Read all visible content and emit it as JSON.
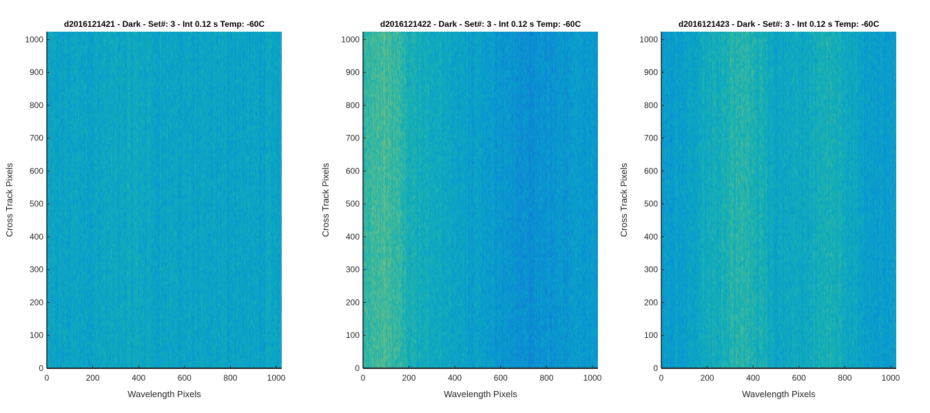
{
  "chart_data": [
    {
      "type": "heatmap",
      "title": "d2016121421 - Dark - Set#: 3 - Int 0.12 s Temp: -60C",
      "xlabel": "Wavelength Pixels",
      "ylabel": "Cross Track Pixels",
      "xlim": [
        0,
        1024
      ],
      "ylim": [
        0,
        1024
      ],
      "x_ticks": [
        0,
        200,
        400,
        600,
        800,
        1000
      ],
      "y_ticks": [
        0,
        100,
        200,
        300,
        400,
        500,
        600,
        700,
        800,
        900,
        1000
      ],
      "x_tick_labels": [
        "0",
        "200",
        "400",
        "600",
        "800",
        "1000"
      ],
      "y_tick_labels": [
        "0",
        "100",
        "200",
        "300",
        "400",
        "500",
        "600",
        "700",
        "800",
        "900",
        "1000"
      ],
      "colormap": "parula",
      "grid": false,
      "column_mean_profile": {
        "x": [
          0,
          100,
          200,
          300,
          400,
          500,
          600,
          700,
          800,
          900,
          1024
        ],
        "level": [
          0.46,
          0.47,
          0.47,
          0.48,
          0.49,
          0.47,
          0.47,
          0.46,
          0.47,
          0.46,
          0.47
        ]
      }
    },
    {
      "type": "heatmap",
      "title": "d2016121422 - Dark - Set#: 3 - Int 0.12 s Temp: -60C",
      "xlabel": "Wavelength Pixels",
      "ylabel": "Cross Track Pixels",
      "xlim": [
        0,
        1024
      ],
      "ylim": [
        0,
        1024
      ],
      "x_ticks": [
        0,
        200,
        400,
        600,
        800,
        1000
      ],
      "y_ticks": [
        0,
        100,
        200,
        300,
        400,
        500,
        600,
        700,
        800,
        900,
        1000
      ],
      "x_tick_labels": [
        "0",
        "200",
        "400",
        "600",
        "800",
        "1000"
      ],
      "y_tick_labels": [
        "0",
        "100",
        "200",
        "300",
        "400",
        "500",
        "600",
        "700",
        "800",
        "900",
        "1000"
      ],
      "colormap": "parula",
      "grid": false,
      "column_mean_profile": {
        "x": [
          0,
          50,
          100,
          150,
          200,
          300,
          400,
          500,
          600,
          700,
          800,
          900,
          1024
        ],
        "level": [
          0.58,
          0.62,
          0.63,
          0.6,
          0.55,
          0.5,
          0.47,
          0.44,
          0.41,
          0.37,
          0.39,
          0.42,
          0.43
        ]
      }
    },
    {
      "type": "heatmap",
      "title": "d2016121423 - Dark - Set#: 3 - Int 0.12 s Temp: -60C",
      "xlabel": "Wavelength Pixels",
      "ylabel": "Cross Track Pixels",
      "xlim": [
        0,
        1024
      ],
      "ylim": [
        0,
        1024
      ],
      "x_ticks": [
        0,
        200,
        400,
        600,
        800,
        1000
      ],
      "y_ticks": [
        0,
        100,
        200,
        300,
        400,
        500,
        600,
        700,
        800,
        900,
        1000
      ],
      "x_tick_labels": [
        "0",
        "200",
        "400",
        "600",
        "800",
        "1000"
      ],
      "y_tick_labels": [
        "0",
        "100",
        "200",
        "300",
        "400",
        "500",
        "600",
        "700",
        "800",
        "900",
        "1000"
      ],
      "colormap": "parula",
      "grid": false,
      "column_mean_profile": {
        "x": [
          0,
          100,
          200,
          300,
          350,
          400,
          500,
          600,
          700,
          750,
          800,
          900,
          1024
        ],
        "level": [
          0.43,
          0.45,
          0.5,
          0.55,
          0.57,
          0.55,
          0.48,
          0.49,
          0.52,
          0.54,
          0.5,
          0.44,
          0.42
        ]
      }
    }
  ]
}
